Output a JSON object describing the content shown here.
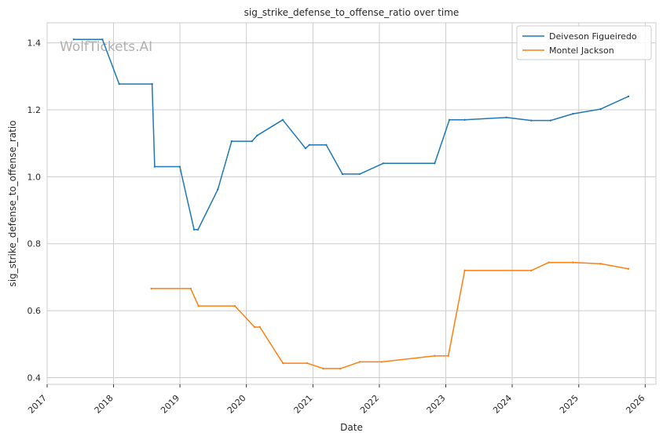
{
  "chart_data": {
    "type": "line",
    "title": "sig_strike_defense_to_offense_ratio over time",
    "xlabel": "Date",
    "ylabel": "sig_strike_defense_to_offense_ratio",
    "watermark": "WolfTickets.AI",
    "xlim": [
      "2017-01-01",
      "2026-03-01"
    ],
    "ylim": [
      0.38,
      1.46
    ],
    "x_ticks": [
      "2017",
      "2018",
      "2019",
      "2020",
      "2021",
      "2022",
      "2023",
      "2024",
      "2025",
      "2026"
    ],
    "y_ticks": [
      0.4,
      0.6,
      0.8,
      1.0,
      1.2,
      1.4
    ],
    "grid": true,
    "legend_position": "top-right",
    "series": [
      {
        "name": "Deiveson Figueiredo",
        "color": "#1f77b4",
        "points": [
          [
            "2017-05-27",
            1.41
          ],
          [
            "2017-11-01",
            1.41
          ],
          [
            "2018-02-01",
            1.277
          ],
          [
            "2018-08-01",
            1.277
          ],
          [
            "2018-08-15",
            1.03
          ],
          [
            "2018-12-31",
            1.03
          ],
          [
            "2019-03-20",
            0.842
          ],
          [
            "2019-04-10",
            0.842
          ],
          [
            "2019-07-28",
            0.962
          ],
          [
            "2019-10-12",
            1.106
          ],
          [
            "2020-02-01",
            1.106
          ],
          [
            "2020-02-29",
            1.123
          ],
          [
            "2020-07-19",
            1.17
          ],
          [
            "2020-11-21",
            1.085
          ],
          [
            "2020-12-12",
            1.095
          ],
          [
            "2021-03-15",
            1.095
          ],
          [
            "2021-06-12",
            1.008
          ],
          [
            "2021-09-15",
            1.008
          ],
          [
            "2022-01-22",
            1.04
          ],
          [
            "2022-11-01",
            1.04
          ],
          [
            "2023-01-21",
            1.17
          ],
          [
            "2023-04-15",
            1.17
          ],
          [
            "2023-11-30",
            1.177
          ],
          [
            "2024-04-15",
            1.168
          ],
          [
            "2024-07-30",
            1.168
          ],
          [
            "2024-11-30",
            1.188
          ],
          [
            "2025-05-01",
            1.202
          ],
          [
            "2025-10-01",
            1.24
          ]
        ]
      },
      {
        "name": "Montel Jackson",
        "color": "#ff7f0e",
        "points": [
          [
            "2018-07-28",
            0.666
          ],
          [
            "2019-03-01",
            0.666
          ],
          [
            "2019-04-13",
            0.614
          ],
          [
            "2019-10-30",
            0.614
          ],
          [
            "2020-02-15",
            0.551
          ],
          [
            "2020-03-15",
            0.551
          ],
          [
            "2020-07-20",
            0.443
          ],
          [
            "2020-11-30",
            0.443
          ],
          [
            "2021-02-27",
            0.427
          ],
          [
            "2021-06-01",
            0.427
          ],
          [
            "2021-09-15",
            0.447
          ],
          [
            "2022-01-15",
            0.447
          ],
          [
            "2022-11-01",
            0.465
          ],
          [
            "2023-01-15",
            0.465
          ],
          [
            "2023-04-15",
            0.72
          ],
          [
            "2024-04-15",
            0.72
          ],
          [
            "2024-07-20",
            0.744
          ],
          [
            "2024-11-30",
            0.744
          ],
          [
            "2025-05-01",
            0.74
          ],
          [
            "2025-10-01",
            0.725
          ]
        ]
      }
    ]
  }
}
